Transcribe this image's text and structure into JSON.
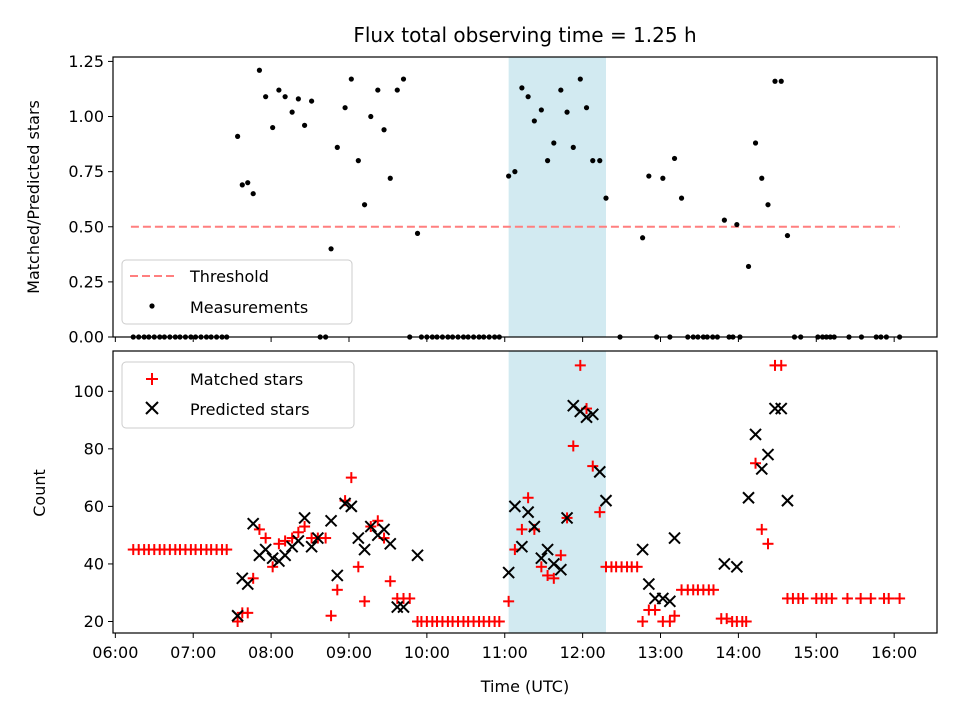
{
  "chart_data": {
    "type": "scatter",
    "title": "Flux total observing time = 1.25 h",
    "xlabel": "Time (UTC)",
    "x_ticks": [
      "06:00",
      "07:00",
      "08:00",
      "09:00",
      "10:00",
      "11:00",
      "12:00",
      "13:00",
      "14:00",
      "15:00",
      "16:00"
    ],
    "x_tick_hours": [
      6,
      7,
      8,
      9,
      10,
      11,
      12,
      13,
      14,
      15,
      16
    ],
    "xlim_hours": [
      5.97,
      16.55
    ],
    "highlight_span_hours": [
      11.05,
      12.3
    ],
    "colors": {
      "threshold": "#ff7f7f",
      "measurements": "#000000",
      "matched": "#ff0000",
      "predicted": "#000000",
      "span": "#add8e6"
    },
    "panels": [
      {
        "ylabel": "Matched/Predicted stars",
        "ylim": [
          0,
          1.27
        ],
        "y_ticks": [
          0.0,
          0.25,
          0.5,
          0.75,
          1.0,
          1.25
        ],
        "y_tick_labels": [
          "0.00",
          "0.25",
          "0.50",
          "0.75",
          "1.00",
          "1.25"
        ],
        "legend": [
          {
            "label": "Threshold"
          },
          {
            "label": "Measurements"
          }
        ],
        "threshold": {
          "y": 0.5,
          "x_start_hours": 6.2,
          "x_end_hours": 16.07
        },
        "measurements": [
          [
            6.23,
            0
          ],
          [
            6.3,
            0
          ],
          [
            6.37,
            0
          ],
          [
            6.43,
            0
          ],
          [
            6.5,
            0
          ],
          [
            6.57,
            0
          ],
          [
            6.63,
            0
          ],
          [
            6.7,
            0
          ],
          [
            6.77,
            0
          ],
          [
            6.83,
            0
          ],
          [
            6.9,
            0
          ],
          [
            6.97,
            0
          ],
          [
            7.03,
            0
          ],
          [
            7.1,
            0
          ],
          [
            7.17,
            0
          ],
          [
            7.23,
            0
          ],
          [
            7.3,
            0
          ],
          [
            7.37,
            0
          ],
          [
            7.43,
            0
          ],
          [
            7.57,
            0.91
          ],
          [
            7.63,
            0.69
          ],
          [
            7.7,
            0.7
          ],
          [
            7.77,
            0.65
          ],
          [
            7.85,
            1.21
          ],
          [
            7.93,
            1.09
          ],
          [
            8.02,
            0.95
          ],
          [
            8.1,
            1.12
          ],
          [
            8.18,
            1.09
          ],
          [
            8.27,
            1.02
          ],
          [
            8.35,
            1.08
          ],
          [
            8.43,
            0.96
          ],
          [
            8.52,
            1.07
          ],
          [
            8.63,
            0
          ],
          [
            8.7,
            0
          ],
          [
            8.77,
            0.4
          ],
          [
            8.85,
            0.86
          ],
          [
            8.95,
            1.04
          ],
          [
            9.03,
            1.17
          ],
          [
            9.12,
            0.8
          ],
          [
            9.2,
            0.6
          ],
          [
            9.28,
            1.0
          ],
          [
            9.37,
            1.12
          ],
          [
            9.45,
            0.94
          ],
          [
            9.53,
            0.72
          ],
          [
            9.62,
            1.12
          ],
          [
            9.7,
            1.17
          ],
          [
            9.78,
            0
          ],
          [
            9.88,
            0.47
          ],
          [
            9.93,
            0
          ],
          [
            10.0,
            0
          ],
          [
            10.07,
            0
          ],
          [
            10.13,
            0
          ],
          [
            10.2,
            0
          ],
          [
            10.27,
            0
          ],
          [
            10.33,
            0
          ],
          [
            10.4,
            0
          ],
          [
            10.47,
            0
          ],
          [
            10.53,
            0
          ],
          [
            10.6,
            0
          ],
          [
            10.67,
            0
          ],
          [
            10.73,
            0
          ],
          [
            10.8,
            0
          ],
          [
            10.87,
            0
          ],
          [
            10.93,
            0
          ],
          [
            11.05,
            0.73
          ],
          [
            11.13,
            0.75
          ],
          [
            11.22,
            1.13
          ],
          [
            11.3,
            1.09
          ],
          [
            11.38,
            0.98
          ],
          [
            11.47,
            1.03
          ],
          [
            11.55,
            0.8
          ],
          [
            11.63,
            0.88
          ],
          [
            11.72,
            1.12
          ],
          [
            11.8,
            1.02
          ],
          [
            11.88,
            0.86
          ],
          [
            11.97,
            1.17
          ],
          [
            12.05,
            1.04
          ],
          [
            12.13,
            0.8
          ],
          [
            12.22,
            0.8
          ],
          [
            12.3,
            0.63
          ],
          [
            12.48,
            0
          ],
          [
            12.77,
            0.45
          ],
          [
            12.85,
            0.73
          ],
          [
            12.95,
            0
          ],
          [
            13.03,
            0.72
          ],
          [
            13.12,
            0
          ],
          [
            13.18,
            0.81
          ],
          [
            13.27,
            0.63
          ],
          [
            13.35,
            0
          ],
          [
            13.42,
            0
          ],
          [
            13.48,
            0
          ],
          [
            13.55,
            0
          ],
          [
            13.6,
            0
          ],
          [
            13.67,
            0
          ],
          [
            13.73,
            0
          ],
          [
            13.82,
            0.53
          ],
          [
            13.88,
            0
          ],
          [
            13.93,
            0
          ],
          [
            13.98,
            0.51
          ],
          [
            14.02,
            0
          ],
          [
            14.13,
            0.32
          ],
          [
            14.22,
            0.88
          ],
          [
            14.3,
            0.72
          ],
          [
            14.38,
            0.6
          ],
          [
            14.47,
            1.16
          ],
          [
            14.55,
            1.16
          ],
          [
            14.63,
            0.46
          ],
          [
            14.72,
            0
          ],
          [
            14.8,
            0
          ],
          [
            15.02,
            0
          ],
          [
            15.08,
            0
          ],
          [
            15.13,
            0
          ],
          [
            15.18,
            0
          ],
          [
            15.23,
            0
          ],
          [
            15.42,
            0
          ],
          [
            15.58,
            0
          ],
          [
            15.77,
            0
          ],
          [
            15.83,
            0
          ],
          [
            15.9,
            0
          ],
          [
            16.07,
            0
          ]
        ]
      },
      {
        "ylabel": "Count",
        "ylim": [
          16,
          114
        ],
        "y_ticks": [
          20,
          40,
          60,
          80,
          100
        ],
        "y_tick_labels": [
          "20",
          "40",
          "60",
          "80",
          "100"
        ],
        "legend": [
          {
            "label": "Matched stars"
          },
          {
            "label": "Predicted stars"
          }
        ],
        "matched": [
          [
            6.23,
            45
          ],
          [
            6.3,
            45
          ],
          [
            6.37,
            45
          ],
          [
            6.43,
            45
          ],
          [
            6.5,
            45
          ],
          [
            6.57,
            45
          ],
          [
            6.63,
            45
          ],
          [
            6.7,
            45
          ],
          [
            6.77,
            45
          ],
          [
            6.83,
            45
          ],
          [
            6.9,
            45
          ],
          [
            6.97,
            45
          ],
          [
            7.03,
            45
          ],
          [
            7.1,
            45
          ],
          [
            7.17,
            45
          ],
          [
            7.23,
            45
          ],
          [
            7.3,
            45
          ],
          [
            7.37,
            45
          ],
          [
            7.43,
            45
          ],
          [
            7.57,
            20
          ],
          [
            7.63,
            23
          ],
          [
            7.7,
            23
          ],
          [
            7.77,
            35
          ],
          [
            7.85,
            52
          ],
          [
            7.93,
            49
          ],
          [
            8.02,
            39
          ],
          [
            8.1,
            47
          ],
          [
            8.18,
            48
          ],
          [
            8.27,
            49
          ],
          [
            8.35,
            51
          ],
          [
            8.43,
            53
          ],
          [
            8.52,
            49
          ],
          [
            8.6,
            49
          ],
          [
            8.7,
            49
          ],
          [
            8.77,
            22
          ],
          [
            8.85,
            31
          ],
          [
            8.95,
            62
          ],
          [
            9.03,
            70
          ],
          [
            9.12,
            39
          ],
          [
            9.2,
            27
          ],
          [
            9.28,
            53
          ],
          [
            9.37,
            55
          ],
          [
            9.45,
            49
          ],
          [
            9.53,
            34
          ],
          [
            9.62,
            28
          ],
          [
            9.7,
            28
          ],
          [
            9.78,
            28
          ],
          [
            9.88,
            20
          ],
          [
            9.93,
            20
          ],
          [
            10.0,
            20
          ],
          [
            10.07,
            20
          ],
          [
            10.13,
            20
          ],
          [
            10.2,
            20
          ],
          [
            10.27,
            20
          ],
          [
            10.33,
            20
          ],
          [
            10.4,
            20
          ],
          [
            10.47,
            20
          ],
          [
            10.53,
            20
          ],
          [
            10.6,
            20
          ],
          [
            10.67,
            20
          ],
          [
            10.73,
            20
          ],
          [
            10.8,
            20
          ],
          [
            10.87,
            20
          ],
          [
            10.93,
            20
          ],
          [
            11.05,
            27
          ],
          [
            11.13,
            45
          ],
          [
            11.22,
            52
          ],
          [
            11.3,
            63
          ],
          [
            11.38,
            52
          ],
          [
            11.47,
            39
          ],
          [
            11.55,
            36
          ],
          [
            11.63,
            35
          ],
          [
            11.72,
            43
          ],
          [
            11.8,
            56
          ],
          [
            11.88,
            81
          ],
          [
            11.97,
            109
          ],
          [
            12.05,
            94
          ],
          [
            12.13,
            74
          ],
          [
            12.22,
            58
          ],
          [
            12.3,
            39
          ],
          [
            12.37,
            39
          ],
          [
            12.43,
            39
          ],
          [
            12.5,
            39
          ],
          [
            12.57,
            39
          ],
          [
            12.63,
            39
          ],
          [
            12.7,
            39
          ],
          [
            12.77,
            20
          ],
          [
            12.85,
            24
          ],
          [
            12.93,
            24
          ],
          [
            13.03,
            20
          ],
          [
            13.12,
            20
          ],
          [
            13.18,
            22
          ],
          [
            13.27,
            31
          ],
          [
            13.35,
            31
          ],
          [
            13.42,
            31
          ],
          [
            13.48,
            31
          ],
          [
            13.55,
            31
          ],
          [
            13.62,
            31
          ],
          [
            13.68,
            31
          ],
          [
            13.78,
            21
          ],
          [
            13.85,
            21
          ],
          [
            13.92,
            20
          ],
          [
            13.98,
            20
          ],
          [
            14.05,
            20
          ],
          [
            14.1,
            20
          ],
          [
            14.22,
            75
          ],
          [
            14.3,
            52
          ],
          [
            14.38,
            47
          ],
          [
            14.47,
            109
          ],
          [
            14.55,
            109
          ],
          [
            14.63,
            28
          ],
          [
            14.7,
            28
          ],
          [
            14.77,
            28
          ],
          [
            14.83,
            28
          ],
          [
            15.0,
            28
          ],
          [
            15.07,
            28
          ],
          [
            15.13,
            28
          ],
          [
            15.2,
            28
          ],
          [
            15.4,
            28
          ],
          [
            15.57,
            28
          ],
          [
            15.7,
            28
          ],
          [
            15.87,
            28
          ],
          [
            15.93,
            28
          ],
          [
            16.07,
            28
          ]
        ],
        "predicted": [
          [
            7.57,
            22
          ],
          [
            7.63,
            35
          ],
          [
            7.7,
            33
          ],
          [
            7.77,
            54
          ],
          [
            7.85,
            43
          ],
          [
            7.93,
            45
          ],
          [
            8.02,
            42
          ],
          [
            8.1,
            41
          ],
          [
            8.18,
            43
          ],
          [
            8.27,
            46
          ],
          [
            8.35,
            48
          ],
          [
            8.43,
            56
          ],
          [
            8.52,
            46
          ],
          [
            8.6,
            49
          ],
          [
            8.77,
            55
          ],
          [
            8.85,
            36
          ],
          [
            8.95,
            61
          ],
          [
            9.03,
            60
          ],
          [
            9.12,
            49
          ],
          [
            9.2,
            45
          ],
          [
            9.28,
            53
          ],
          [
            9.37,
            50
          ],
          [
            9.45,
            52
          ],
          [
            9.53,
            47
          ],
          [
            9.62,
            25
          ],
          [
            9.7,
            25
          ],
          [
            9.88,
            43
          ],
          [
            11.05,
            37
          ],
          [
            11.13,
            60
          ],
          [
            11.22,
            46
          ],
          [
            11.3,
            58
          ],
          [
            11.38,
            53
          ],
          [
            11.47,
            42
          ],
          [
            11.55,
            45
          ],
          [
            11.63,
            40
          ],
          [
            11.72,
            38
          ],
          [
            11.8,
            56
          ],
          [
            11.88,
            95
          ],
          [
            11.97,
            93
          ],
          [
            12.05,
            91
          ],
          [
            12.13,
            92
          ],
          [
            12.22,
            72
          ],
          [
            12.3,
            62
          ],
          [
            12.77,
            45
          ],
          [
            12.85,
            33
          ],
          [
            12.93,
            28
          ],
          [
            13.03,
            28
          ],
          [
            13.12,
            27
          ],
          [
            13.18,
            49
          ],
          [
            13.82,
            40
          ],
          [
            13.98,
            39
          ],
          [
            14.13,
            63
          ],
          [
            14.22,
            85
          ],
          [
            14.3,
            73
          ],
          [
            14.38,
            78
          ],
          [
            14.47,
            94
          ],
          [
            14.55,
            94
          ],
          [
            14.63,
            62
          ]
        ]
      }
    ]
  }
}
